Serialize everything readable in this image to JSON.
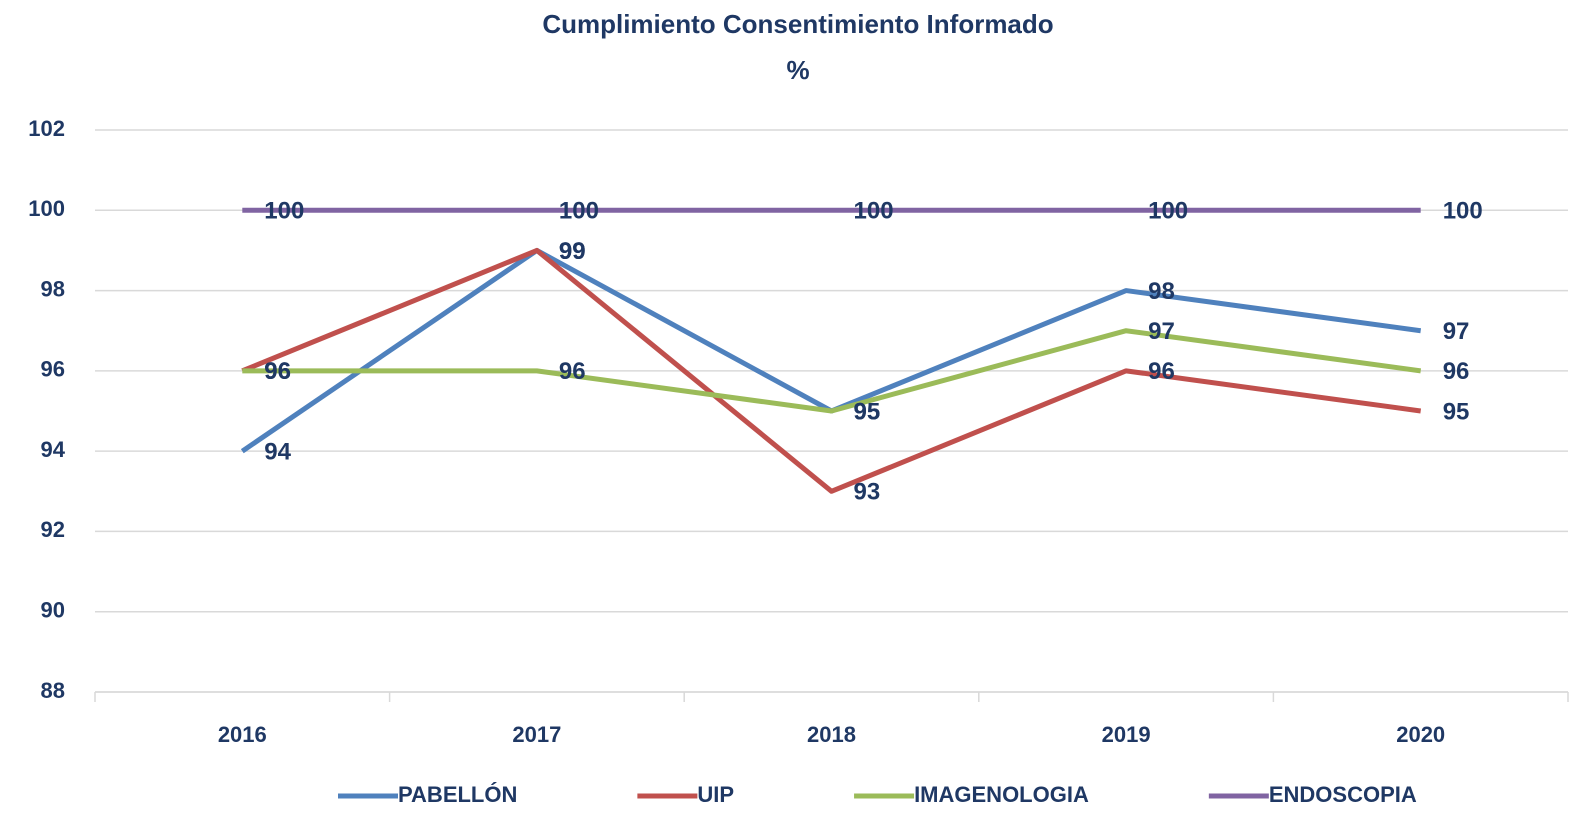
{
  "chart_data": {
    "type": "line",
    "title": "Cumplimiento Consentimiento Informado",
    "subtitle": "%",
    "categories": [
      "2016",
      "2017",
      "2018",
      "2019",
      "2020"
    ],
    "series": [
      {
        "name": "PABELLÓN",
        "color": "#4f81bd",
        "values": [
          94,
          99,
          95,
          98,
          97
        ]
      },
      {
        "name": "UIP",
        "color": "#c0504d",
        "values": [
          96,
          99,
          93,
          96,
          95
        ]
      },
      {
        "name": "IMAGENOLOGIA",
        "color": "#9bbb59",
        "values": [
          96,
          96,
          95,
          97,
          96
        ]
      },
      {
        "name": "ENDOSCOPIA",
        "color": "#8064a2",
        "values": [
          100,
          100,
          100,
          100,
          100
        ]
      }
    ],
    "ylim": [
      88,
      102
    ],
    "yticks": [
      88,
      90,
      92,
      94,
      96,
      98,
      100,
      102
    ],
    "grid": true,
    "legend": "bottom",
    "data_labels": true
  }
}
